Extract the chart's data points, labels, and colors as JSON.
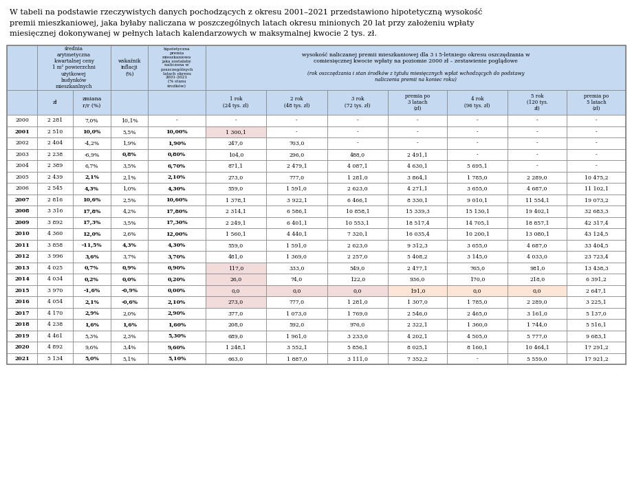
{
  "intro_text_line1": "W tabeli na podstawie rzeczywistych danych pochodzących z okresu 2001–2021 przedstawiono hipotetyczną wysokość",
  "intro_text_line2": "premii mieszkaniowej, jaka byłaby naliczana w poszczególnych latach okresu minionych 20 lat przy założeniu wpłaty",
  "intro_text_line3": "miesięcznej dokonywanej w pełnych latach kalendarzowych w maksymalnej kwocie 2 tys. zł.",
  "header_bg": "#c5d9f1",
  "row_bg_white": "#ffffff",
  "highlight_pink": "#f2dcdb",
  "highlight_peach": "#fce4d6",
  "col4_subheaders": [
    "1 rok\n(24 tys. zł)",
    "2 rok\n(48 tys. zł)",
    "3 rok\n(72 tys. zł)",
    "premia po\n3 latach\n(zł)",
    "4 rok\n(96 tys. zł)",
    "5 rok\n(120 tys.\nzł)",
    "premia po\n5 latach\n(zł)"
  ],
  "rows": [
    [
      "2000",
      "2 281",
      "7,0%",
      "10,1%",
      "-",
      "-",
      "-",
      "-",
      "-",
      "-",
      "-",
      "-"
    ],
    [
      "2001",
      "2 510",
      "10,0%",
      "5,5%",
      "10,00%",
      "1 300,1",
      "-",
      "-",
      "-",
      "-",
      "-",
      "-"
    ],
    [
      "2002",
      "2 404",
      "-4,2%",
      "1,9%",
      "1,90%",
      "247,0",
      "703,0",
      "-",
      "-",
      "-",
      "-",
      "-"
    ],
    [
      "2003",
      "2 238",
      "-6,9%",
      "0,8%",
      "0,80%",
      "104,0",
      "296,0",
      "488,0",
      "2 491,1",
      "-",
      "-",
      "-"
    ],
    [
      "2004",
      "2 389",
      "6,7%",
      "3,5%",
      "6,70%",
      "871,1",
      "2 479,1",
      "4 087,1",
      "4 630,1",
      "5 695,1",
      "-",
      "-"
    ],
    [
      "2005",
      "2 439",
      "2,1%",
      "2,1%",
      "2,10%",
      "273,0",
      "777,0",
      "1 281,0",
      "3 864,1",
      "1 785,0",
      "2 289,0",
      "10 475,2"
    ],
    [
      "2006",
      "2 545",
      "4,3%",
      "1,0%",
      "4,30%",
      "559,0",
      "1 591,0",
      "2 623,0",
      "4 271,1",
      "3 655,0",
      "4 687,0",
      "11 102,1"
    ],
    [
      "2007",
      "2 816",
      "10,6%",
      "2,5%",
      "10,60%",
      "1 378,1",
      "3 922,1",
      "6 466,1",
      "8 330,1",
      "9 010,1",
      "11 554,1",
      "19 073,2"
    ],
    [
      "2008",
      "3 316",
      "17,8%",
      "4,2%",
      "17,80%",
      "2 314,1",
      "6 586,1",
      "10 858,1",
      "15 339,3",
      "15 130,1",
      "19 402,1",
      "32 683,3"
    ],
    [
      "2009",
      "3 892",
      "17,3%",
      "3,5%",
      "17,30%",
      "2 249,1",
      "6 401,1",
      "10 553,1",
      "18 517,4",
      "14 705,1",
      "18 857,1",
      "42 317,4"
    ],
    [
      "2010",
      "4 360",
      "12,0%",
      "2,6%",
      "12,00%",
      "1 560,1",
      "4 440,1",
      "7 320,1",
      "16 035,4",
      "10 200,1",
      "13 080,1",
      "43 124,5"
    ],
    [
      "2011",
      "3 858",
      "-11,5%",
      "4,3%",
      "4,30%",
      "559,0",
      "1 591,0",
      "2 623,0",
      "9 312,3",
      "3 655,0",
      "4 687,0",
      "33 404,5"
    ],
    [
      "2012",
      "3 996",
      "3,6%",
      "3,7%",
      "3,70%",
      "481,0",
      "1 369,0",
      "2 257,0",
      "5 408,2",
      "3 145,0",
      "4 033,0",
      "23 723,4"
    ],
    [
      "2013",
      "4 025",
      "0,7%",
      "0,9%",
      "0,90%",
      "117,0",
      "333,0",
      "549,0",
      "2 477,1",
      "765,0",
      "981,0",
      "13 438,3"
    ],
    [
      "2014",
      "4 034",
      "0,2%",
      "0,0%",
      "0,20%",
      "26,0",
      "74,0",
      "122,0",
      "936,0",
      "170,0",
      "218,0",
      "6 391,2"
    ],
    [
      "2015",
      "3 970",
      "-1,6%",
      "-0,9%",
      "0,00%",
      "0,0",
      "0,0",
      "0,0",
      "191,0",
      "0,0",
      "0,0",
      "2 647,1"
    ],
    [
      "2016",
      "4 054",
      "2,1%",
      "-0,6%",
      "2,10%",
      "273,0",
      "777,0",
      "1 281,0",
      "1 307,0",
      "1 785,0",
      "2 289,0",
      "3 225,1"
    ],
    [
      "2017",
      "4 170",
      "2,9%",
      "2,0%",
      "2,90%",
      "377,0",
      "1 073,0",
      "1 769,0",
      "2 546,0",
      "2 465,0",
      "3 161,0",
      "5 137,0"
    ],
    [
      "2018",
      "4 238",
      "1,6%",
      "1,6%",
      "1,60%",
      "208,0",
      "592,0",
      "976,0",
      "2 322,1",
      "1 360,0",
      "1 744,0",
      "5 516,1"
    ],
    [
      "2019",
      "4 461",
      "5,3%",
      "2,3%",
      "5,30%",
      "689,0",
      "1 961,0",
      "3 233,0",
      "4 202,1",
      "4 505,0",
      "5 777,0",
      "9 683,1"
    ],
    [
      "2020",
      "4 892",
      "9,6%",
      "3,4%",
      "9,60%",
      "1 248,1",
      "3 552,1",
      "5 856,1",
      "8 025,1",
      "8 160,1",
      "10 464,1",
      "17 291,2"
    ],
    [
      "2021",
      "5 134",
      "5,0%",
      "5,1%",
      "5,10%",
      "663,0",
      "1 887,0",
      "3 111,0",
      "7 352,2",
      "-",
      "5 559,0",
      "17 921,2"
    ]
  ],
  "bold_year": [
    2001,
    2007,
    2008,
    2009,
    2010,
    2011,
    2012,
    2013,
    2014,
    2015,
    2016,
    2017,
    2018,
    2019,
    2020,
    2021
  ],
  "bold_change": [
    2001,
    2005,
    2006,
    2007,
    2008,
    2009,
    2010,
    2011,
    2012,
    2013,
    2014,
    2015,
    2016,
    2017,
    2018,
    2021
  ],
  "bold_inflation": [
    2003,
    2011,
    2013,
    2014,
    2015,
    2016,
    2018
  ],
  "bold_hypo": [
    2001,
    2002,
    2003,
    2004,
    2005,
    2006,
    2007,
    2008,
    2009,
    2010,
    2011,
    2012,
    2013,
    2014,
    2015,
    2016,
    2017,
    2018,
    2019,
    2020,
    2021
  ],
  "pink_cells": {
    "2001": [
      5
    ],
    "2013": [
      5
    ],
    "2014": [
      5
    ],
    "2015": [
      5,
      6,
      7
    ],
    "2016": [
      5
    ]
  },
  "peach_cells": {
    "2015": [
      8,
      9,
      10
    ]
  }
}
